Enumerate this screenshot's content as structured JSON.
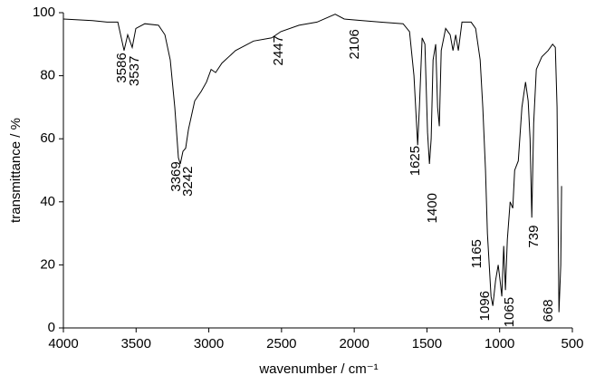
{
  "chart_data": {
    "type": "line",
    "xlabel": "wavenumber / cm⁻¹",
    "ylabel": "transmittance / %",
    "x": [
      4000,
      3800,
      3700,
      3626,
      3583,
      3558,
      3527,
      3502,
      3440,
      3346,
      3302,
      3265,
      3234,
      3209,
      3196,
      3178,
      3159,
      3140,
      3097,
      3053,
      3016,
      2984,
      2953,
      2910,
      2816,
      2692,
      2567,
      2505,
      2380,
      2256,
      2131,
      2069,
      1944,
      1820,
      1664,
      1620,
      1589,
      1564,
      1552,
      1533,
      1514,
      1496,
      1483,
      1471,
      1458,
      1440,
      1427,
      1415,
      1402,
      1371,
      1340,
      1321,
      1302,
      1284,
      1259,
      1196,
      1165,
      1134,
      1116,
      1097,
      1084,
      1072,
      1059,
      1047,
      1028,
      1010,
      997,
      985,
      972,
      960,
      947,
      928,
      910,
      897,
      872,
      847,
      822,
      804,
      791,
      779,
      766,
      748,
      710,
      667,
      636,
      617,
      605,
      592,
      580,
      574
    ],
    "values": [
      98,
      97.5,
      97,
      97,
      88,
      93,
      89,
      95,
      96.5,
      96,
      93,
      85,
      70,
      54,
      52,
      56,
      57,
      63,
      72,
      75,
      78,
      82,
      81,
      84,
      88,
      91,
      92,
      94,
      96,
      97,
      99.5,
      98,
      97.5,
      97,
      96.5,
      94,
      80,
      58,
      70,
      92,
      90,
      62,
      52,
      60,
      85,
      90,
      70,
      64,
      88,
      95,
      93,
      88,
      93,
      88,
      97,
      97,
      95,
      85,
      70,
      50,
      30,
      20,
      10,
      7,
      15,
      20,
      15,
      10,
      26,
      12,
      28,
      40,
      38,
      50,
      53,
      70,
      78,
      72,
      60,
      35,
      65,
      82,
      86,
      88,
      90,
      89,
      70,
      5,
      20,
      45
    ],
    "color": "#000000",
    "xlim": [
      4000,
      500
    ],
    "ylim": [
      0,
      100
    ],
    "xticks": [
      4000,
      3500,
      3000,
      2500,
      2000,
      1500,
      1000,
      500
    ],
    "yticks": [
      0,
      20,
      40,
      60,
      80,
      100
    ],
    "annotations": [
      {
        "text": "3586",
        "x": 3595,
        "y": 82.5
      },
      {
        "text": "3537",
        "x": 3508,
        "y": 81.5
      },
      {
        "text": "3369",
        "x": 3221,
        "y": 48
      },
      {
        "text": "3242",
        "x": 3140,
        "y": 46.5
      },
      {
        "text": "2447",
        "x": 2517,
        "y": 88
      },
      {
        "text": "2106",
        "x": 1994,
        "y": 90
      },
      {
        "text": "1625",
        "x": 1577,
        "y": 53
      },
      {
        "text": "1400",
        "x": 1458,
        "y": 38
      },
      {
        "text": "1165",
        "x": 1153,
        "y": 23.5
      },
      {
        "text": "1096",
        "x": 1097,
        "y": 7
      },
      {
        "text": "1065",
        "x": 928,
        "y": 5
      },
      {
        "text": "739",
        "x": 760,
        "y": 29
      },
      {
        "text": "668",
        "x": 661,
        "y": 5.5
      }
    ]
  }
}
